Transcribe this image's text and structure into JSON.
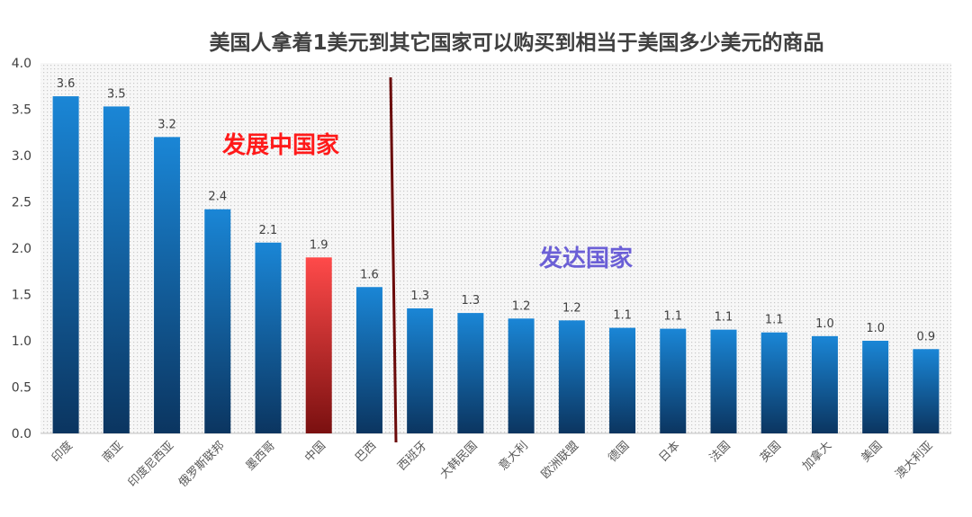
{
  "chart_data": {
    "type": "bar",
    "title": "美国人拿着1美元到其它国家可以购买到相当于美国多少美元的商品",
    "xlabel": "",
    "ylabel": "",
    "ylim": [
      0,
      4.0
    ],
    "yticks": [
      "0.0",
      "0.5",
      "1.0",
      "1.5",
      "2.0",
      "2.5",
      "3.0",
      "3.5",
      "4.0"
    ],
    "categories": [
      "印度",
      "南亚",
      "印度尼西亚",
      "俄罗斯联邦",
      "墨西哥",
      "中国",
      "巴西",
      "西班牙",
      "大韩民国",
      "意大利",
      "欧洲联盟",
      "德国",
      "日本",
      "法国",
      "英国",
      "加拿大",
      "美国",
      "澳大利亚"
    ],
    "values": [
      3.64,
      3.53,
      3.2,
      2.42,
      2.06,
      1.9,
      1.58,
      1.35,
      1.3,
      1.24,
      1.22,
      1.14,
      1.13,
      1.12,
      1.09,
      1.05,
      1.0,
      0.91
    ],
    "data_labels": [
      "3.6",
      "3.5",
      "3.2",
      "2.4",
      "2.1",
      "1.9",
      "1.6",
      "1.3",
      "1.3",
      "1.2",
      "1.2",
      "1.1",
      "1.1",
      "1.1",
      "1.1",
      "1.0",
      "1.0",
      "0.9"
    ],
    "highlight_index": 5,
    "annotations": {
      "developing": "发展中国家",
      "developed": "发达国家"
    },
    "grid": true,
    "colors": {
      "bar_top": "#1a86d6",
      "bar_bottom": "#0b3560",
      "highlight_top": "#ff4a4a",
      "highlight_bottom": "#7a1010",
      "developing_text": "#ff1a1a",
      "developed_text": "#6b5fd6",
      "divider": "#6b0a0a",
      "plot_bg": "#f2f2f2"
    }
  }
}
